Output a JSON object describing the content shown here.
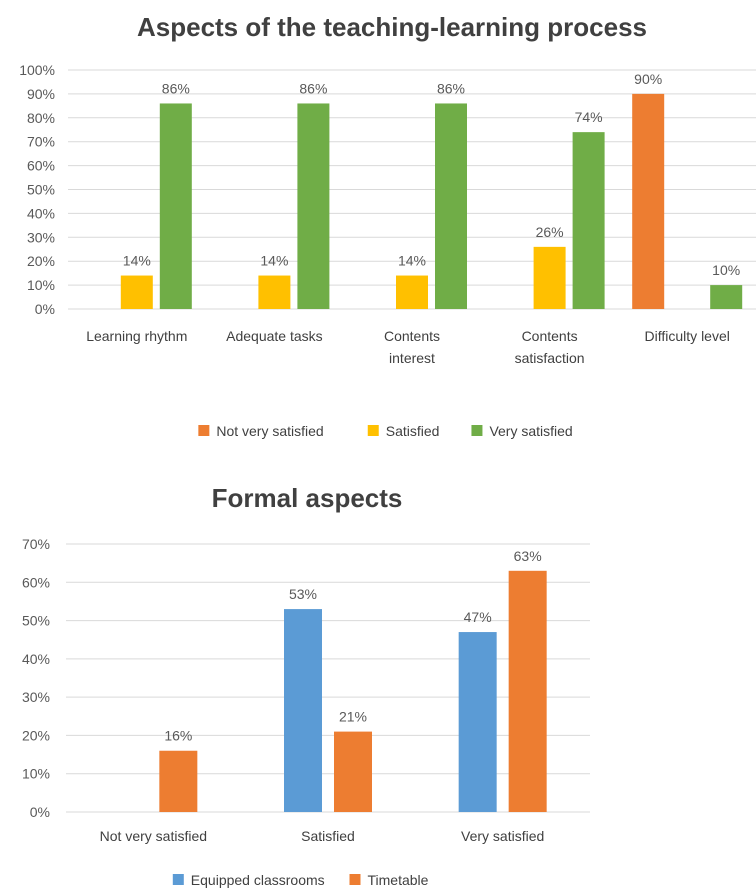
{
  "chart_data": [
    {
      "type": "bar",
      "title": "Aspects of the teaching-learning process",
      "categories": [
        [
          "Learning rhythm"
        ],
        [
          "Adequate tasks"
        ],
        [
          "Contents",
          "interest"
        ],
        [
          "Contents",
          "satisfaction"
        ],
        [
          "Difficulty level"
        ]
      ],
      "series": [
        {
          "name": "Not very satisfied",
          "color": "#ed7d31",
          "values": [
            null,
            null,
            null,
            null,
            90
          ],
          "labels": [
            "",
            "",
            "",
            "",
            "90%"
          ]
        },
        {
          "name": "Satisfied",
          "color": "#ffc000",
          "values": [
            14,
            14,
            14,
            26,
            null
          ],
          "labels": [
            "14%",
            "14%",
            "14%",
            "26%",
            ""
          ]
        },
        {
          "name": "Very satisfied",
          "color": "#70ad47",
          "values": [
            86,
            86,
            86,
            74,
            10
          ],
          "labels": [
            "86%",
            "86%",
            "86%",
            "74%",
            "10%"
          ]
        }
      ],
      "yticks": [
        "0%",
        "10%",
        "20%",
        "30%",
        "40%",
        "50%",
        "60%",
        "70%",
        "80%",
        "90%",
        "100%"
      ],
      "ylim": [
        0,
        100
      ],
      "grid": true,
      "legend": "bottom"
    },
    {
      "type": "bar",
      "title": "Formal aspects",
      "categories": [
        [
          "Not very satisfied"
        ],
        [
          "Satisfied"
        ],
        [
          "Very satisfied"
        ]
      ],
      "series": [
        {
          "name": "Equipped classrooms",
          "color": "#5b9bd5",
          "values": [
            null,
            53,
            47
          ],
          "labels": [
            "",
            "53%",
            "47%"
          ]
        },
        {
          "name": "Timetable",
          "color": "#ed7d31",
          "values": [
            16,
            21,
            63
          ],
          "labels": [
            "16%",
            "21%",
            "63%"
          ]
        }
      ],
      "yticks": [
        "0%",
        "10%",
        "20%",
        "30%",
        "40%",
        "50%",
        "60%",
        "70%"
      ],
      "ylim": [
        0,
        70
      ],
      "grid": true,
      "legend": "bottom"
    }
  ]
}
